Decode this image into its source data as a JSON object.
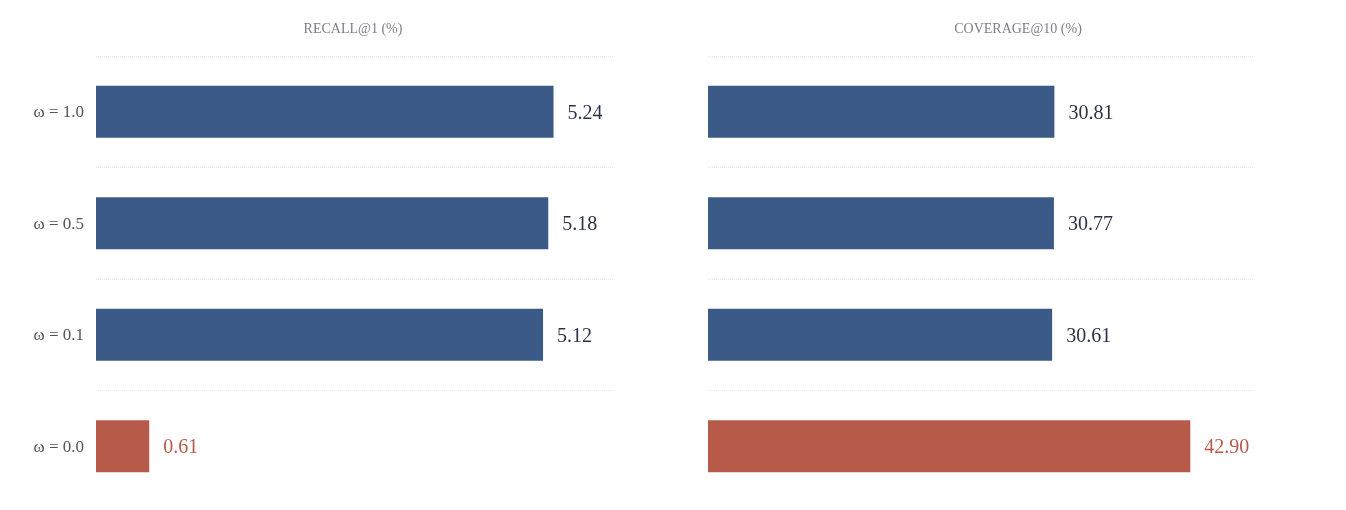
{
  "chart_data": [
    {
      "type": "bar",
      "orientation": "horizontal",
      "title": "RECALL@1 (%)",
      "categories": [
        "ω = 1.0",
        "ω = 0.5",
        "ω = 0.1",
        "ω = 0.0"
      ],
      "values": [
        5.24,
        5.18,
        5.12,
        0.61
      ],
      "colors": [
        "#3c5a88",
        "#3c5a88",
        "#3c5a88",
        "#b85a4a"
      ],
      "data_labels": true,
      "grid": "y",
      "tick_labels": "y"
    },
    {
      "type": "bar",
      "orientation": "horizontal",
      "title": "COVERAGE@10 (%)",
      "categories": [
        null,
        null,
        null,
        null
      ],
      "values": [
        30.81,
        30.77,
        30.61,
        42.9
      ],
      "value_labels": [
        "30.81",
        "30.77",
        "30.61",
        "42.90"
      ],
      "colors": [
        "#3c5a88",
        "#3c5a88",
        "#3c5a88",
        "#b85a4a"
      ],
      "grid": "y",
      "tick_labels": false
    }
  ]
}
